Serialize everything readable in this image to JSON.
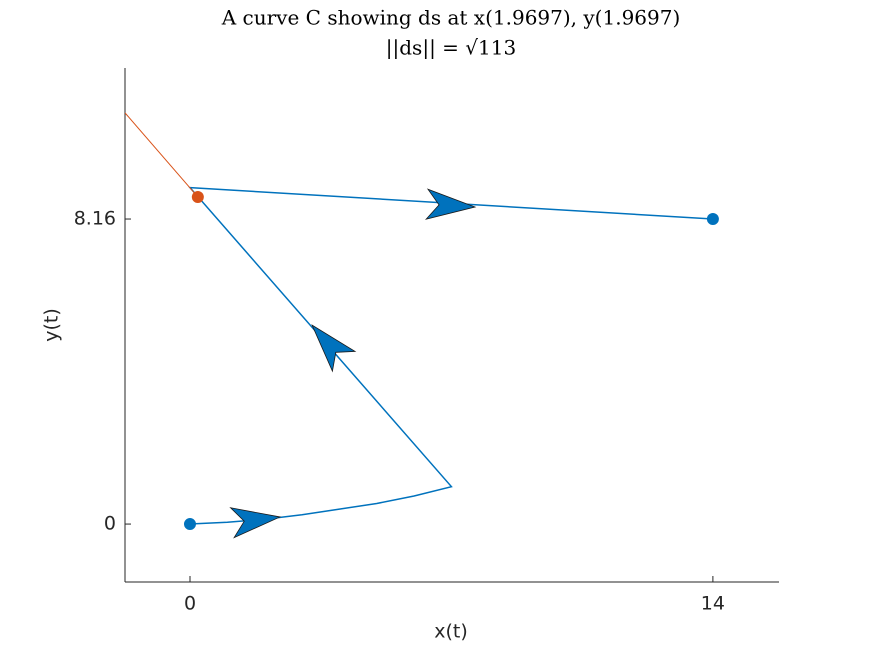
{
  "chart_data": {
    "type": "line",
    "title": "A curve C showing ds at x(1.9697), y(1.9697)",
    "subtitle": "||ds|| = √113",
    "x_label": "x(t)",
    "y_label": "y(t)",
    "xlim": [
      -1.74,
      15.77
    ],
    "ylim": [
      -1.55,
      12.2
    ],
    "xticks": [
      0,
      14
    ],
    "yticks": [
      0,
      8.16
    ],
    "grid": false,
    "series": [
      {
        "color": "#0072bd",
        "x": [
          0,
          1,
          2,
          3,
          4,
          5,
          6,
          7,
          0,
          14
        ],
        "values": [
          0,
          0.05,
          0.13,
          0.25,
          0.4,
          0.55,
          0.75,
          1,
          9,
          8.16
        ]
      },
      {
        "color": "#d95319",
        "x": [
          -1.74,
          0.21
        ],
        "values": [
          11.0,
          8.75
        ]
      }
    ],
    "points": [
      {
        "color": "#0072bd",
        "x": 0,
        "y": 0
      },
      {
        "color": "#0072bd",
        "x": 14,
        "y": 8.16
      },
      {
        "color": "#d95319",
        "x": 0.21,
        "y": 8.75
      }
    ],
    "arrows": {
      "color": "#0072bd",
      "x": [
        2.41,
        3.27,
        7.63
      ],
      "y": [
        0.19,
        5.32,
        8.48
      ]
    }
  }
}
